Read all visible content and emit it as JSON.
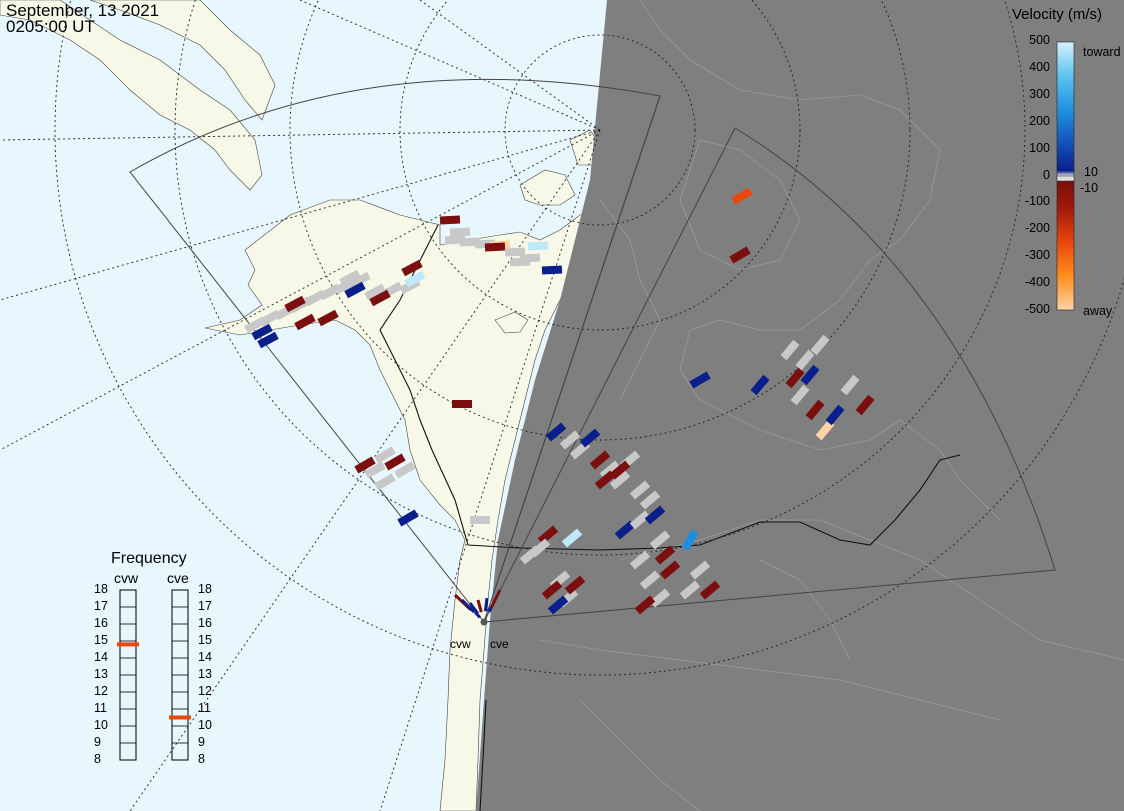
{
  "header": {
    "date": "September, 13 2021",
    "time": "0205:00 UT"
  },
  "velocity_scale": {
    "title": "Velocity (m/s)",
    "ticks": [
      "500",
      "400",
      "300",
      "200",
      "100",
      "0",
      "-100",
      "-200",
      "-300",
      "-400",
      "-500"
    ],
    "label_10": "10",
    "label_minus10": "-10",
    "toward_label": "toward",
    "away_label": "away",
    "colors": {
      "toward_light": "#bfe9fb",
      "toward_mid": "#1e8fe0",
      "toward_dark": "#0a1f8c",
      "away_dark": "#7b0e0e",
      "away_mid": "#e8480d",
      "away_light": "#ffd3a8"
    }
  },
  "frequency": {
    "title": "Frequency",
    "radars": [
      {
        "name": "cvw",
        "value_mhz": 14.8
      },
      {
        "name": "cve",
        "value_mhz": 10.5
      }
    ],
    "ticks": [
      "18",
      "17",
      "16",
      "15",
      "14",
      "13",
      "12",
      "11",
      "10",
      "9",
      "8"
    ],
    "marker_color": "#e8480d"
  },
  "map": {
    "ocean_color": "#e8f6fe",
    "land_color": "#f8f8e8",
    "night_color": "#7f7f7f",
    "ground_scatter_color": "#c8c8c8",
    "sites": [
      "cvw",
      "cve"
    ]
  }
}
